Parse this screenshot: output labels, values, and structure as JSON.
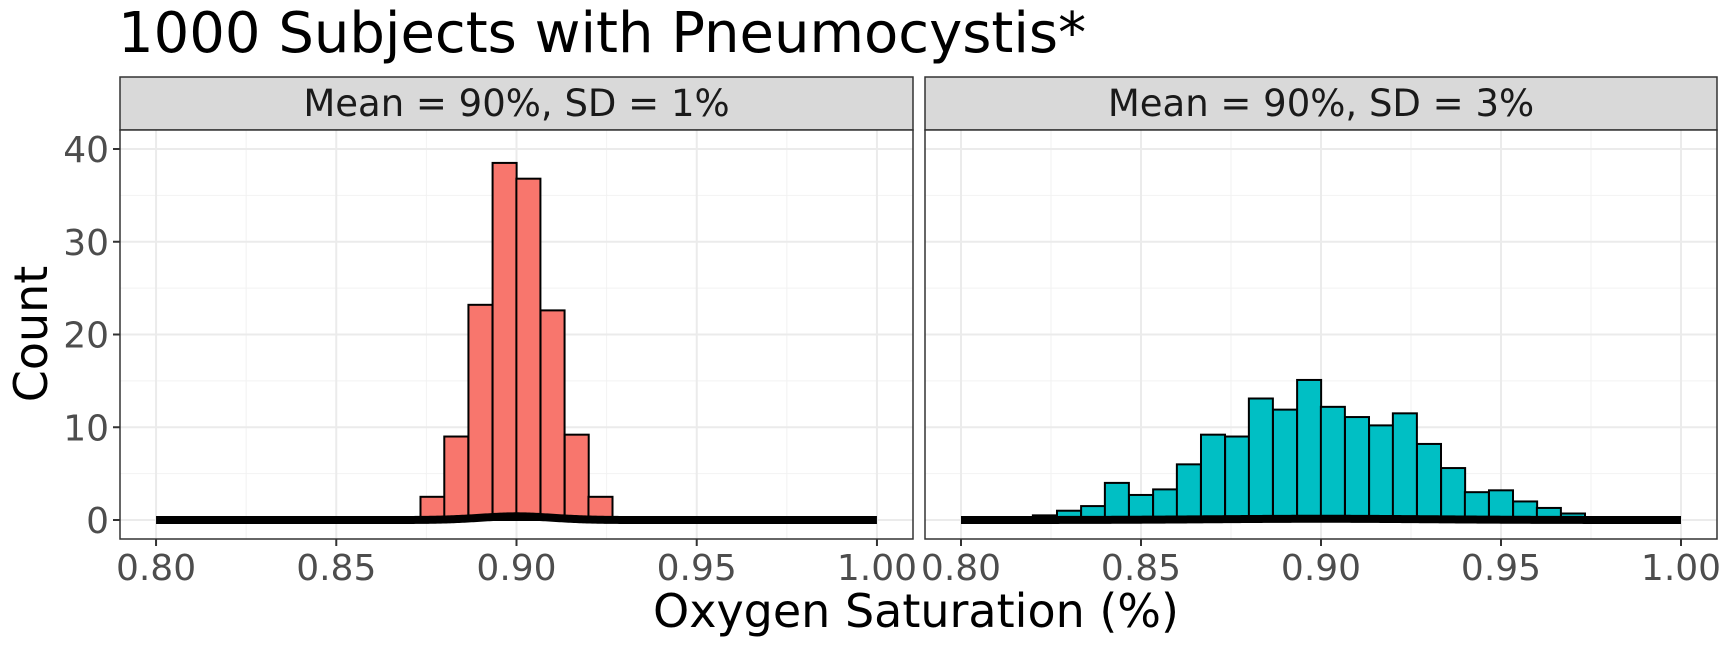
{
  "chart_data": {
    "type": "bar",
    "title": "1000 Subjects with Pneumocystis*",
    "xlabel": "Oxygen Saturation (%)",
    "ylabel": "Count",
    "xlim": [
      0.8,
      1.0
    ],
    "ylim": [
      0,
      40
    ],
    "xticks": [
      "0.80",
      "0.85",
      "0.90",
      "0.95",
      "1.00"
    ],
    "yticks": [
      "0",
      "10",
      "20",
      "30",
      "40"
    ],
    "grid": true,
    "bin_width": 0.00667,
    "panels": [
      {
        "strip": "Mean = 90%, SD = 1%",
        "fill": "#F8766D",
        "mean": 0.9,
        "sd": 0.01,
        "bins": [
          {
            "x": 0.8633,
            "count": 0
          },
          {
            "x": 0.87,
            "count": 0.3
          },
          {
            "x": 0.8767,
            "count": 2.5
          },
          {
            "x": 0.8833,
            "count": 9
          },
          {
            "x": 0.89,
            "count": 23.2
          },
          {
            "x": 0.8967,
            "count": 38.5
          },
          {
            "x": 0.9033,
            "count": 36.8
          },
          {
            "x": 0.91,
            "count": 22.6
          },
          {
            "x": 0.9167,
            "count": 9.2
          },
          {
            "x": 0.9233,
            "count": 2.5
          },
          {
            "x": 0.93,
            "count": 0.3
          }
        ]
      },
      {
        "strip": "Mean = 90%, SD = 3%",
        "fill": "#00BFC4",
        "mean": 0.9,
        "sd": 0.03,
        "bins": [
          {
            "x": 0.8233,
            "count": 0.5
          },
          {
            "x": 0.83,
            "count": 1
          },
          {
            "x": 0.8367,
            "count": 1.5
          },
          {
            "x": 0.8433,
            "count": 4
          },
          {
            "x": 0.85,
            "count": 2.7
          },
          {
            "x": 0.8567,
            "count": 3.3
          },
          {
            "x": 0.8633,
            "count": 6
          },
          {
            "x": 0.87,
            "count": 9.2
          },
          {
            "x": 0.8767,
            "count": 9
          },
          {
            "x": 0.8833,
            "count": 13.1
          },
          {
            "x": 0.89,
            "count": 11.9
          },
          {
            "x": 0.8967,
            "count": 15.1
          },
          {
            "x": 0.9033,
            "count": 12.2
          },
          {
            "x": 0.91,
            "count": 11.1
          },
          {
            "x": 0.9167,
            "count": 10.2
          },
          {
            "x": 0.9233,
            "count": 11.5
          },
          {
            "x": 0.93,
            "count": 8.2
          },
          {
            "x": 0.9367,
            "count": 5.6
          },
          {
            "x": 0.9433,
            "count": 3
          },
          {
            "x": 0.95,
            "count": 3.2
          },
          {
            "x": 0.9567,
            "count": 2
          },
          {
            "x": 0.9633,
            "count": 1.3
          },
          {
            "x": 0.97,
            "count": 0.7
          },
          {
            "x": 0.9767,
            "count": 0.3
          }
        ]
      }
    ],
    "curve": {
      "type": "normal-density-scaled",
      "color": "#000000"
    }
  }
}
